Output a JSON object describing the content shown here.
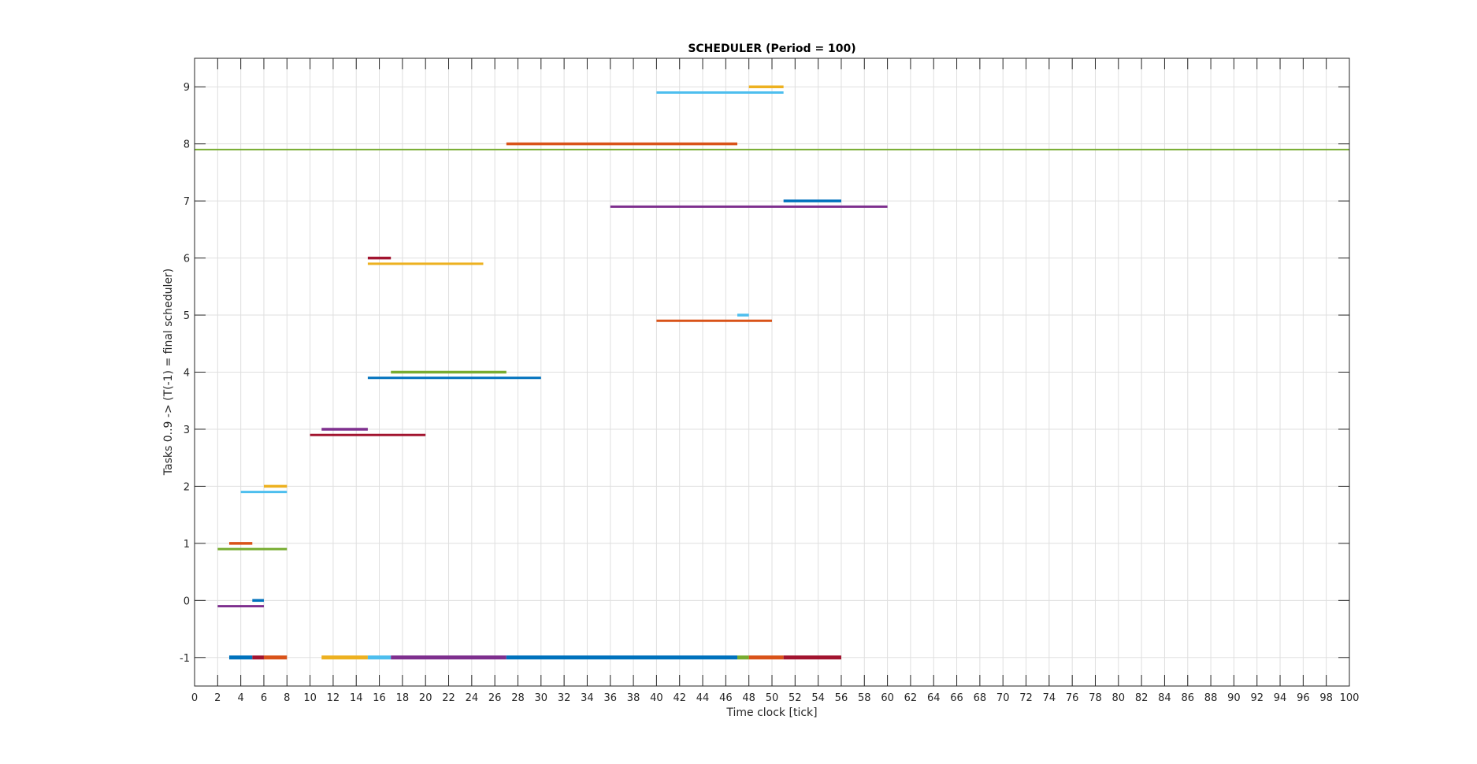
{
  "chart_data": {
    "type": "gantt",
    "title": "SCHEDULER (Period = 100)",
    "xlabel": "Time clock [tick]",
    "ylabel": "Tasks 0..9 -> (T(-1) = final scheduler)",
    "xlim": [
      0,
      100
    ],
    "ylim": [
      -1.5,
      9.5
    ],
    "xticks": [
      0,
      2,
      4,
      6,
      8,
      10,
      12,
      14,
      16,
      18,
      20,
      22,
      24,
      26,
      28,
      30,
      32,
      34,
      36,
      38,
      40,
      42,
      44,
      46,
      48,
      50,
      52,
      54,
      56,
      58,
      60,
      62,
      64,
      66,
      68,
      70,
      72,
      74,
      76,
      78,
      80,
      82,
      84,
      86,
      88,
      90,
      92,
      94,
      96,
      98,
      100
    ],
    "yticks": [
      -1,
      0,
      1,
      2,
      3,
      4,
      5,
      6,
      7,
      8,
      9
    ],
    "grid": true,
    "segments": [
      {
        "y": 0,
        "x0": 5,
        "x1": 6,
        "color": "#0072BD"
      },
      {
        "y": -0.1,
        "x0": 2,
        "x1": 6,
        "color": "#7E2F8E"
      },
      {
        "y": 1,
        "x0": 3,
        "x1": 5,
        "color": "#D95319"
      },
      {
        "y": 0.9,
        "x0": 2,
        "x1": 8,
        "color": "#77AC30"
      },
      {
        "y": 2,
        "x0": 6,
        "x1": 8,
        "color": "#EDB120"
      },
      {
        "y": 1.9,
        "x0": 4,
        "x1": 8,
        "color": "#4DBEEE"
      },
      {
        "y": 3,
        "x0": 11,
        "x1": 15,
        "color": "#7E2F8E"
      },
      {
        "y": 2.9,
        "x0": 10,
        "x1": 20,
        "color": "#A2142F"
      },
      {
        "y": 4,
        "x0": 17,
        "x1": 27,
        "color": "#77AC30"
      },
      {
        "y": 3.9,
        "x0": 15,
        "x1": 30,
        "color": "#0072BD"
      },
      {
        "y": 5,
        "x0": 47,
        "x1": 48,
        "color": "#4DBEEE"
      },
      {
        "y": 4.9,
        "x0": 40,
        "x1": 50,
        "color": "#D95319"
      },
      {
        "y": 6,
        "x0": 15,
        "x1": 17,
        "color": "#A2142F"
      },
      {
        "y": 5.9,
        "x0": 15,
        "x1": 25,
        "color": "#EDB120"
      },
      {
        "y": 7,
        "x0": 51,
        "x1": 56,
        "color": "#0072BD"
      },
      {
        "y": 6.9,
        "x0": 36,
        "x1": 60,
        "color": "#7E2F8E"
      },
      {
        "y": 8,
        "x0": 27,
        "x1": 47,
        "color": "#D95319"
      },
      {
        "y": 7.9,
        "x0": 0,
        "x1": 100,
        "color": "#77AC30"
      },
      {
        "y": 9,
        "x0": 48,
        "x1": 51,
        "color": "#EDB120"
      },
      {
        "y": 8.9,
        "x0": 40,
        "x1": 51,
        "color": "#4DBEEE"
      },
      {
        "y": -1,
        "x0": 3,
        "x1": 5,
        "color": "#0072BD"
      },
      {
        "y": -1,
        "x0": 5,
        "x1": 6,
        "color": "#A2142F"
      },
      {
        "y": -1,
        "x0": 6,
        "x1": 8,
        "color": "#D95319"
      },
      {
        "y": -1,
        "x0": 11,
        "x1": 15,
        "color": "#EDB120"
      },
      {
        "y": -1,
        "x0": 15,
        "x1": 17,
        "color": "#4DBEEE"
      },
      {
        "y": -1,
        "x0": 17,
        "x1": 27,
        "color": "#7E2F8E"
      },
      {
        "y": -1,
        "x0": 27,
        "x1": 47,
        "color": "#0072BD"
      },
      {
        "y": -1,
        "x0": 47,
        "x1": 48,
        "color": "#77AC30"
      },
      {
        "y": -1,
        "x0": 48,
        "x1": 51,
        "color": "#D95319"
      },
      {
        "y": -1,
        "x0": 51,
        "x1": 56,
        "color": "#A2142F"
      }
    ]
  }
}
